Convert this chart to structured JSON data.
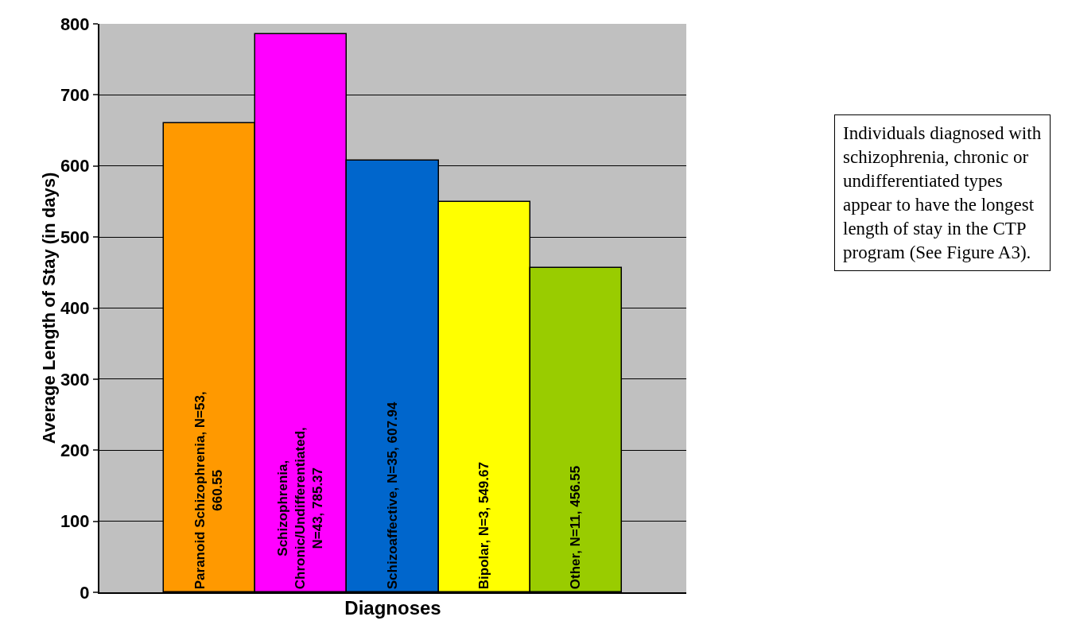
{
  "chart_data": {
    "type": "bar",
    "xlabel": "Diagnoses",
    "ylabel": "Average Length of Stay (in days)",
    "categories": [
      null,
      null,
      null,
      null,
      null
    ],
    "values": [
      660.55,
      785.37,
      607.94,
      549.67,
      456.55
    ],
    "colors": [
      "#ff9900",
      "#ff00ff",
      "#0066cc",
      "#ffff00",
      "#99cc00"
    ],
    "value_labels": [
      "Paranoid Schizophrenia, N=53, 660.55",
      "Schizophrenia, Chronic/Undifferentiated, N=43, 785.37",
      "Schizoaffective, N=35, 607.94",
      "Bipolar, N=3, 549.67",
      "Other, N=11, 456.55"
    ],
    "ylim": [
      0,
      800
    ],
    "yticks": [
      0,
      100,
      200,
      300,
      400,
      500,
      600,
      700,
      800
    ],
    "grid": "y",
    "annotations": [
      "Individuals diagnosed with schizophrenia, chronic or undifferentiated types appear to have the longest length of stay in the CTP program (See Figure A3)."
    ]
  }
}
